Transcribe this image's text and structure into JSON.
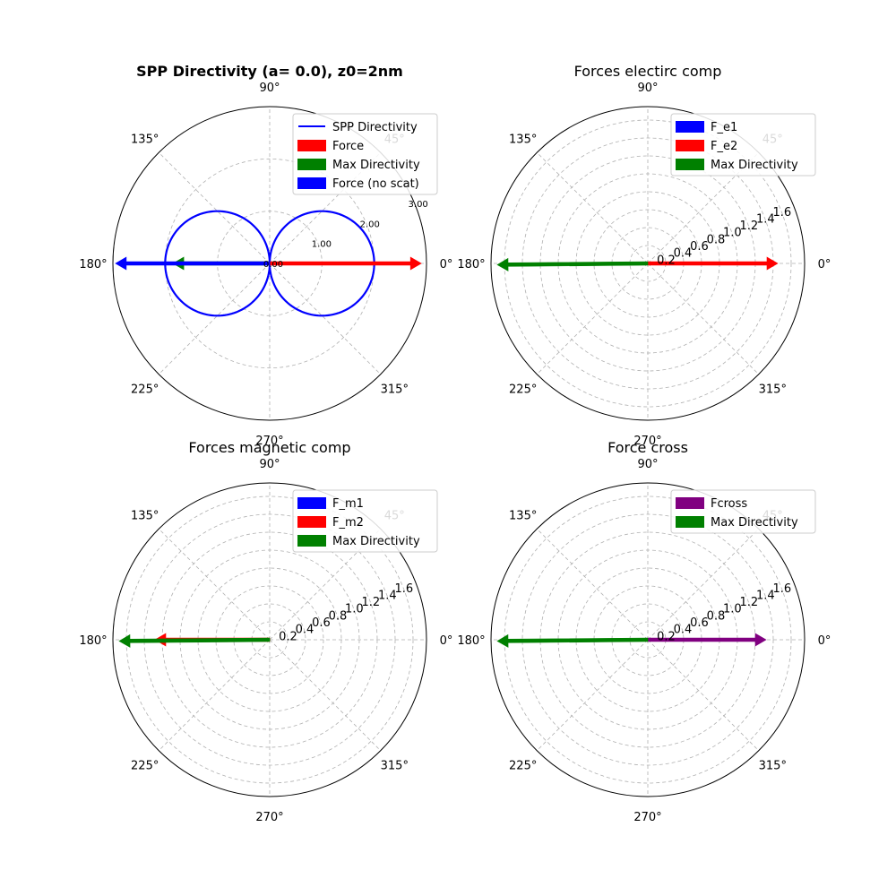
{
  "chart_data": [
    {
      "type": "polar",
      "title": "SPP Directivity (a= 0.0), z0=2nm",
      "title_bold": true,
      "rmax": 3.0,
      "rticks": [
        0.0,
        1.0,
        2.0,
        3.0
      ],
      "rtick_labels": [
        "0.00",
        "1.00",
        "2.00",
        "3.00"
      ],
      "rlabel_small": true,
      "theta_ticks": [
        0,
        45,
        90,
        135,
        180,
        225,
        270,
        315
      ],
      "theta_labels": [
        "0°",
        "45°",
        "90°",
        "135°",
        "180°",
        "225°",
        "270°",
        "315°"
      ],
      "grid": true,
      "legend_position": "top-right",
      "series": [
        {
          "name": "SPP Directivity",
          "kind": "line",
          "color": "#0000ff",
          "amplitude": 2.0,
          "shape": "abs-cos"
        },
        {
          "name": "Force",
          "kind": "arrow",
          "color": "#ff0000",
          "theta_deg": 0,
          "r": 2.9
        },
        {
          "name": "Max Directivity",
          "kind": "arrow",
          "color": "#008000",
          "theta_deg": 180,
          "r": 1.85
        },
        {
          "name": "Force (no scat)",
          "kind": "arrow",
          "color": "#0000ff",
          "theta_deg": 180,
          "r": 2.95
        }
      ]
    },
    {
      "type": "polar",
      "title": "Forces electirc comp",
      "title_bold": false,
      "rmax": 1.75,
      "rticks": [
        0.2,
        0.4,
        0.6,
        0.8,
        1.0,
        1.2,
        1.4,
        1.6
      ],
      "rtick_labels": [
        "0.2",
        "0.4",
        "0.6",
        "0.8",
        "1.0",
        "1.2",
        "1.4",
        "1.6"
      ],
      "rlabel_small": false,
      "theta_ticks": [
        0,
        45,
        90,
        135,
        180,
        225,
        270,
        315
      ],
      "theta_labels": [
        "0°",
        "45°",
        "90°",
        "135°",
        "180°",
        "225°",
        "270°",
        "315°"
      ],
      "grid": true,
      "legend_position": "top-right",
      "series": [
        {
          "name": "F_e1",
          "kind": "arrow",
          "color": "#0000ff",
          "theta_deg": 0,
          "r": 0.0
        },
        {
          "name": "F_e2",
          "kind": "arrow",
          "color": "#ff0000",
          "theta_deg": 0,
          "r": 1.45
        },
        {
          "name": "Max Directivity",
          "kind": "arrow",
          "color": "#008000",
          "theta_deg": 180.5,
          "r": 1.68
        }
      ]
    },
    {
      "type": "polar",
      "title": "Forces magnetic comp",
      "title_bold": false,
      "rmax": 1.75,
      "rticks": [
        0.2,
        0.4,
        0.6,
        0.8,
        1.0,
        1.2,
        1.4,
        1.6
      ],
      "rtick_labels": [
        "0.2",
        "0.4",
        "0.6",
        "0.8",
        "1.0",
        "1.2",
        "1.4",
        "1.6"
      ],
      "rlabel_small": false,
      "theta_ticks": [
        0,
        45,
        90,
        135,
        180,
        225,
        270,
        315
      ],
      "theta_labels": [
        "0°",
        "45°",
        "90°",
        "135°",
        "180°",
        "225°",
        "270°",
        "315°"
      ],
      "grid": true,
      "legend_position": "top-right",
      "series": [
        {
          "name": "F_m1",
          "kind": "arrow",
          "color": "#0000ff",
          "theta_deg": 180,
          "r": 0.0
        },
        {
          "name": "F_m2",
          "kind": "arrow",
          "color": "#ff0000",
          "theta_deg": 180,
          "r": 1.28
        },
        {
          "name": "Max Directivity",
          "kind": "arrow",
          "color": "#008000",
          "theta_deg": 180.5,
          "r": 1.68
        }
      ]
    },
    {
      "type": "polar",
      "title": "Force cross",
      "title_bold": false,
      "rmax": 1.75,
      "rticks": [
        0.2,
        0.4,
        0.6,
        0.8,
        1.0,
        1.2,
        1.4,
        1.6
      ],
      "rtick_labels": [
        "0.2",
        "0.4",
        "0.6",
        "0.8",
        "1.0",
        "1.2",
        "1.4",
        "1.6"
      ],
      "rlabel_small": false,
      "theta_ticks": [
        0,
        45,
        90,
        135,
        180,
        225,
        270,
        315
      ],
      "theta_labels": [
        "0°",
        "45°",
        "90°",
        "135°",
        "180°",
        "225°",
        "270°",
        "315°"
      ],
      "grid": true,
      "legend_position": "top-right",
      "series": [
        {
          "name": "Fcross",
          "kind": "arrow",
          "color": "#800080",
          "theta_deg": 0,
          "r": 1.32
        },
        {
          "name": "Max Directivity",
          "kind": "arrow",
          "color": "#008000",
          "theta_deg": 180.5,
          "r": 1.68
        }
      ]
    }
  ]
}
